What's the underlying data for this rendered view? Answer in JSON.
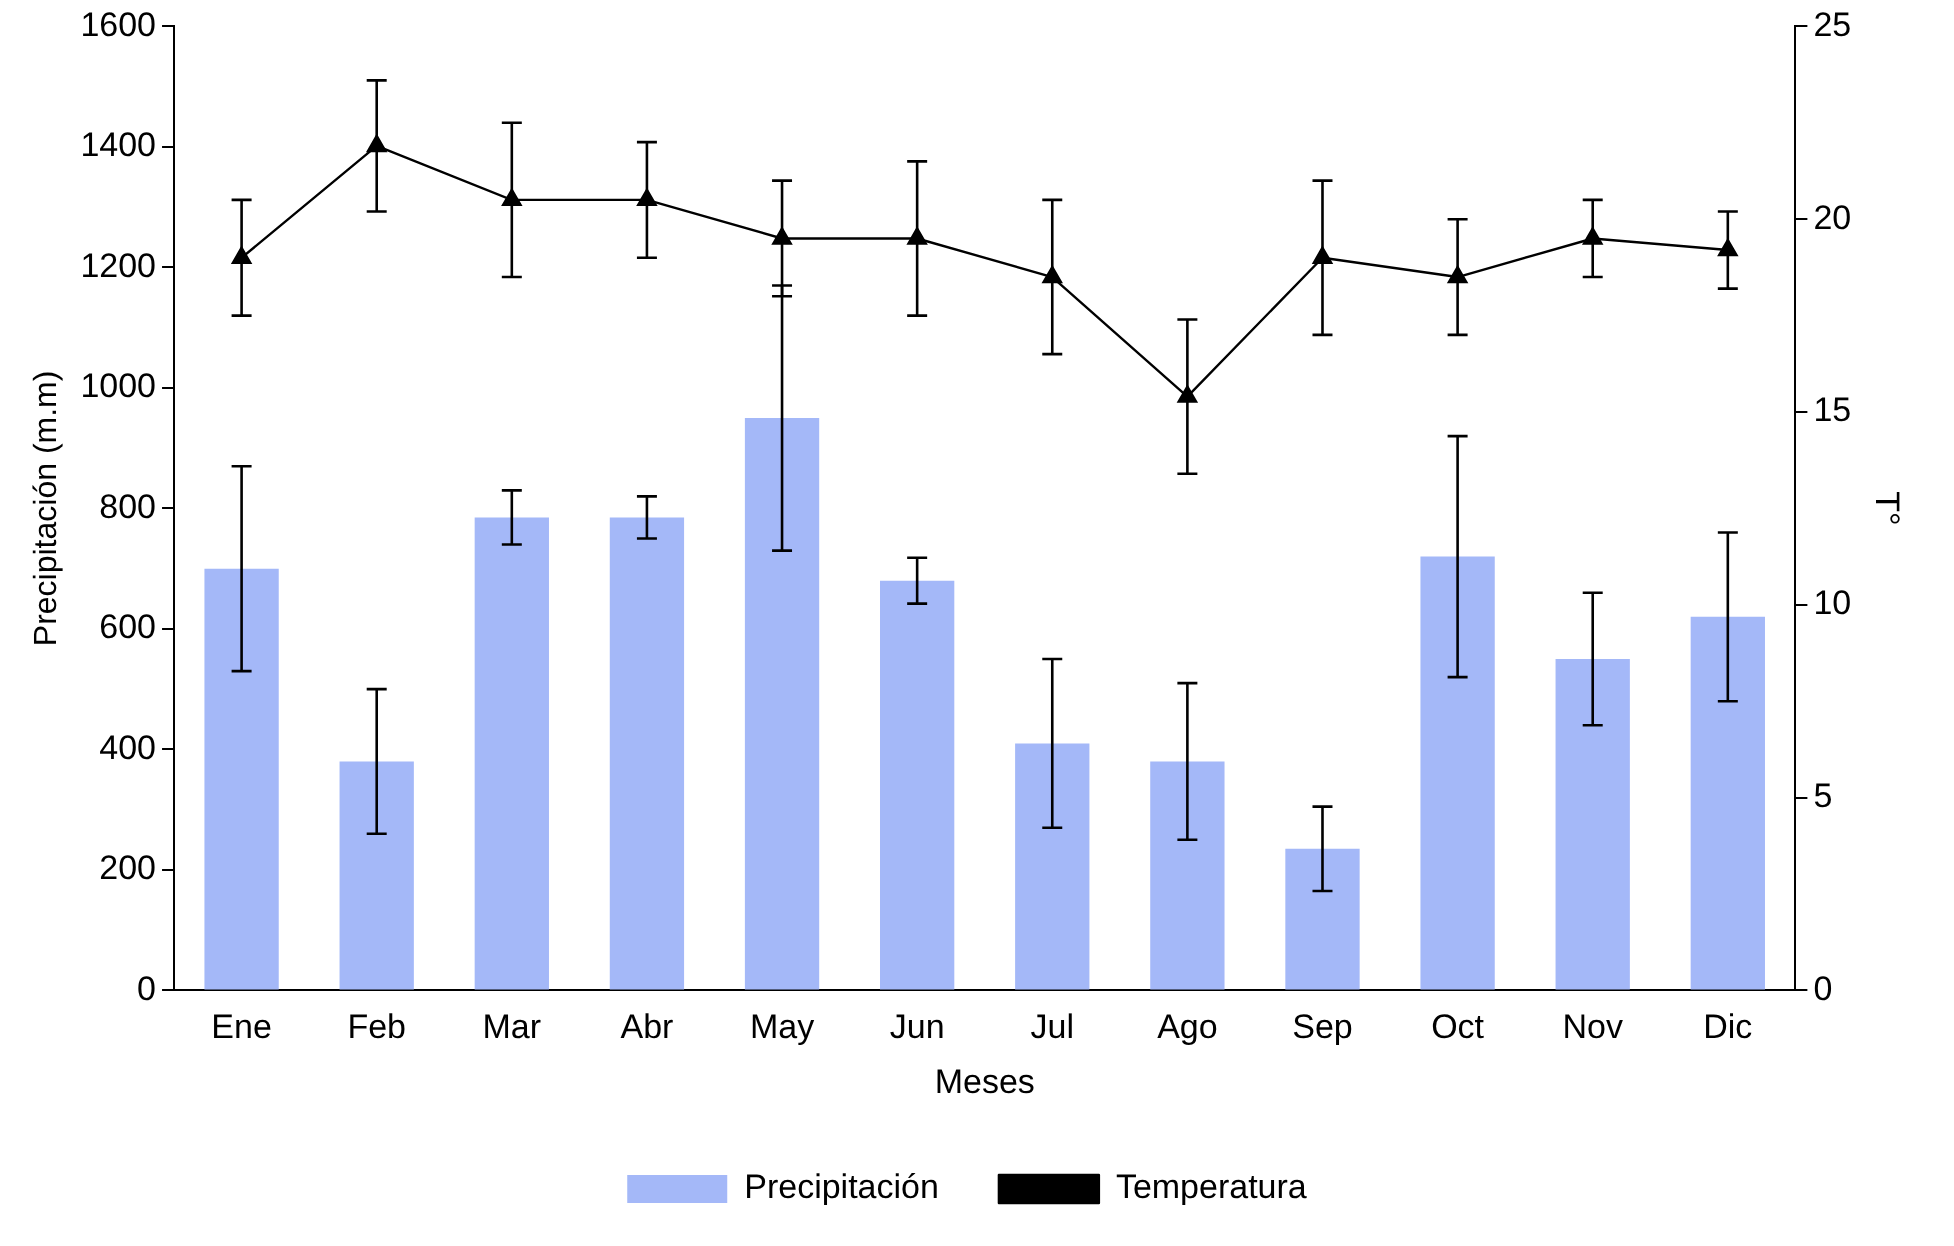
{
  "chart_data": {
    "type": "bar",
    "xlabel": "Meses",
    "ylabel": "Precipitación (m.m)",
    "y2label": "T°",
    "categories": [
      "Ene",
      "Feb",
      "Mar",
      "Abr",
      "May",
      "Jun",
      "Jul",
      "Ago",
      "Sep",
      "Oct",
      "Nov",
      "Dic"
    ],
    "series": [
      {
        "name": "Precipitación",
        "color": "#a4b8f8",
        "values": [
          700,
          380,
          785,
          785,
          950,
          680,
          410,
          380,
          235,
          720,
          550,
          620
        ],
        "errors": [
          170,
          120,
          45,
          35,
          220,
          38,
          140,
          130,
          70,
          200,
          110,
          140
        ]
      },
      {
        "name": "Temperatura",
        "type": "line",
        "axis": "y2",
        "color": "#000000",
        "marker": "triangle",
        "line_style": "solid",
        "values": [
          19,
          21.9,
          20.5,
          20.5,
          19.5,
          19.5,
          18.5,
          15.4,
          19,
          18.5,
          19.5,
          19.2
        ],
        "errors": [
          1.5,
          1.7,
          2,
          1.5,
          1.5,
          2,
          2,
          2,
          2,
          1.5,
          1,
          1
        ]
      }
    ],
    "ylim": [
      0,
      1600
    ],
    "yticks": [
      0,
      200,
      400,
      600,
      800,
      1000,
      1200,
      1400,
      1600
    ],
    "y2lim": [
      0,
      25
    ],
    "y2ticks": [
      0,
      5,
      10,
      15,
      20,
      25
    ],
    "grid": false,
    "legend": "bottom"
  }
}
